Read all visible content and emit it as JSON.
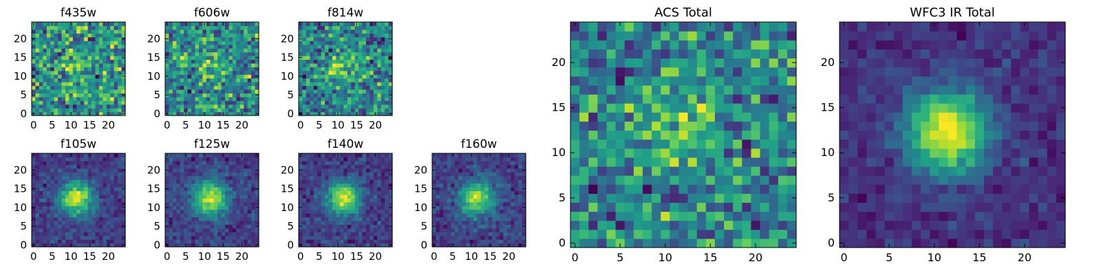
{
  "chart_data": [
    {
      "type": "heatmap",
      "title": "f435w",
      "grid_size": 25,
      "xticks": [
        0,
        5,
        10,
        15,
        20
      ],
      "yticks": [
        0,
        5,
        10,
        15,
        20
      ],
      "xlim": [
        0,
        24
      ],
      "ylim": [
        0,
        24
      ],
      "colormap": "viridis",
      "source_peak": 0.15,
      "noise": 1.0,
      "row": 0,
      "col": 0,
      "size": "small"
    },
    {
      "type": "heatmap",
      "title": "f606w",
      "grid_size": 25,
      "xticks": [
        0,
        5,
        10,
        15,
        20
      ],
      "yticks": [
        0,
        5,
        10,
        15,
        20
      ],
      "xlim": [
        0,
        24
      ],
      "ylim": [
        0,
        24
      ],
      "colormap": "viridis",
      "source_peak": 0.3,
      "noise": 1.0,
      "row": 0,
      "col": 1,
      "size": "small"
    },
    {
      "type": "heatmap",
      "title": "f814w",
      "grid_size": 25,
      "xticks": [
        0,
        5,
        10,
        15,
        20
      ],
      "yticks": [
        0,
        5,
        10,
        15,
        20
      ],
      "xlim": [
        0,
        24
      ],
      "ylim": [
        0,
        24
      ],
      "colormap": "viridis",
      "source_peak": 0.45,
      "noise": 1.0,
      "row": 0,
      "col": 2,
      "size": "small"
    },
    {
      "type": "heatmap",
      "title": "f105w",
      "grid_size": 25,
      "xticks": [
        0,
        5,
        10,
        15,
        20
      ],
      "yticks": [
        0,
        5,
        10,
        15,
        20
      ],
      "xlim": [
        0,
        24
      ],
      "ylim": [
        0,
        24
      ],
      "colormap": "viridis",
      "source_peak": 1.0,
      "noise": 0.35,
      "row": 1,
      "col": 0,
      "size": "small"
    },
    {
      "type": "heatmap",
      "title": "f125w",
      "grid_size": 25,
      "xticks": [
        0,
        5,
        10,
        15,
        20
      ],
      "yticks": [
        0,
        5,
        10,
        15,
        20
      ],
      "xlim": [
        0,
        24
      ],
      "ylim": [
        0,
        24
      ],
      "colormap": "viridis",
      "source_peak": 1.0,
      "noise": 0.35,
      "row": 1,
      "col": 1,
      "size": "small"
    },
    {
      "type": "heatmap",
      "title": "f140w",
      "grid_size": 25,
      "xticks": [
        0,
        5,
        10,
        15,
        20
      ],
      "yticks": [
        0,
        5,
        10,
        15,
        20
      ],
      "xlim": [
        0,
        24
      ],
      "ylim": [
        0,
        24
      ],
      "colormap": "viridis",
      "source_peak": 1.0,
      "noise": 0.35,
      "row": 1,
      "col": 2,
      "size": "small"
    },
    {
      "type": "heatmap",
      "title": "f160w",
      "grid_size": 25,
      "xticks": [
        0,
        5,
        10,
        15,
        20
      ],
      "yticks": [
        0,
        5,
        10,
        15,
        20
      ],
      "xlim": [
        0,
        24
      ],
      "ylim": [
        0,
        24
      ],
      "colormap": "viridis",
      "source_peak": 1.0,
      "noise": 0.4,
      "row": 1,
      "col": 3,
      "size": "small"
    },
    {
      "type": "heatmap",
      "title": "ACS Total",
      "grid_size": 25,
      "xticks": [
        0,
        5,
        10,
        15,
        20
      ],
      "yticks": [
        0,
        5,
        10,
        15,
        20
      ],
      "xlim": [
        0,
        24
      ],
      "ylim": [
        0,
        24
      ],
      "colormap": "viridis",
      "source_peak": 0.4,
      "noise": 0.9,
      "size": "large",
      "slot": 0
    },
    {
      "type": "heatmap",
      "title": "WFC3 IR Total",
      "grid_size": 25,
      "xticks": [
        0,
        5,
        10,
        15,
        20
      ],
      "yticks": [
        0,
        5,
        10,
        15,
        20
      ],
      "xlim": [
        0,
        24
      ],
      "ylim": [
        0,
        24
      ],
      "colormap": "viridis",
      "source_peak": 1.0,
      "noise": 0.25,
      "size": "large",
      "slot": 1
    }
  ],
  "colors": {
    "viridis": [
      "#440154",
      "#482878",
      "#3e4989",
      "#31688e",
      "#26828e",
      "#1f9e89",
      "#35b779",
      "#6ece58",
      "#b5de2b",
      "#fde725"
    ],
    "axis": "#000000",
    "background": "#ffffff"
  }
}
